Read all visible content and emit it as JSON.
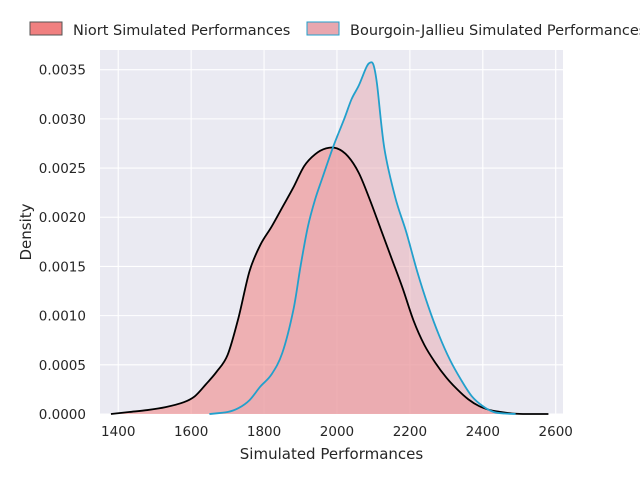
{
  "chart_data": {
    "type": "area",
    "title": "",
    "xlabel": "Simulated Performances",
    "ylabel": "Density",
    "xlim": [
      1350,
      2620
    ],
    "ylim": [
      0,
      0.0037
    ],
    "grid": true,
    "legend_placement": "top",
    "x_ticks": [
      "1400",
      "1600",
      "1800",
      "2000",
      "2200",
      "2400",
      "2600"
    ],
    "y_ticks": [
      "0.0000",
      "0.0005",
      "0.0010",
      "0.0015",
      "0.0020",
      "0.0025",
      "0.0030",
      "0.0035"
    ],
    "colors": {
      "niort_fill": "#f08080",
      "niort_line": "#000000",
      "bourgoin_fill": "#e8a7af",
      "bourgoin_line": "#22a0cc",
      "plot_bg": "#eaeaf2",
      "grid": "#ffffff"
    },
    "series": [
      {
        "name": "Niort Simulated Performances",
        "x": [
          1380,
          1430,
          1480,
          1530,
          1580,
          1610,
          1640,
          1670,
          1700,
          1730,
          1760,
          1790,
          1820,
          1850,
          1880,
          1910,
          1940,
          1970,
          2000,
          2030,
          2060,
          2090,
          2120,
          2150,
          2180,
          2210,
          2240,
          2270,
          2300,
          2330,
          2360,
          2390,
          2420,
          2450,
          2480,
          2510,
          2540,
          2580
        ],
        "y": [
          0.0,
          2e-05,
          4e-05,
          7e-05,
          0.00012,
          0.00018,
          0.0003,
          0.00043,
          0.0006,
          0.00098,
          0.00145,
          0.00172,
          0.0019,
          0.0021,
          0.0023,
          0.00252,
          0.00264,
          0.0027,
          0.0027,
          0.00262,
          0.00245,
          0.00218,
          0.00188,
          0.00158,
          0.00128,
          0.00095,
          0.0007,
          0.00052,
          0.00037,
          0.00025,
          0.00015,
          8e-05,
          4e-05,
          2e-05,
          5e-06,
          0.0,
          0.0,
          0.0
        ]
      },
      {
        "name": "Bourgoin-Jallieu Simulated Performances",
        "x": [
          1650,
          1700,
          1730,
          1760,
          1790,
          1820,
          1850,
          1880,
          1900,
          1920,
          1940,
          1960,
          1990,
          2020,
          2040,
          2060,
          2080,
          2090,
          2100,
          2110,
          2130,
          2160,
          2190,
          2220,
          2250,
          2280,
          2310,
          2340,
          2370,
          2400,
          2430,
          2460,
          2490
        ],
        "y": [
          0.0,
          2e-05,
          6e-05,
          0.00014,
          0.00028,
          0.0004,
          0.00062,
          0.00105,
          0.0015,
          0.0019,
          0.00218,
          0.0024,
          0.00272,
          0.003,
          0.0032,
          0.00334,
          0.00352,
          0.00357,
          0.00355,
          0.00335,
          0.0027,
          0.0022,
          0.00185,
          0.00145,
          0.0011,
          0.0008,
          0.00055,
          0.00035,
          0.00018,
          8e-05,
          2e-05,
          5e-06,
          0.0
        ]
      }
    ]
  }
}
